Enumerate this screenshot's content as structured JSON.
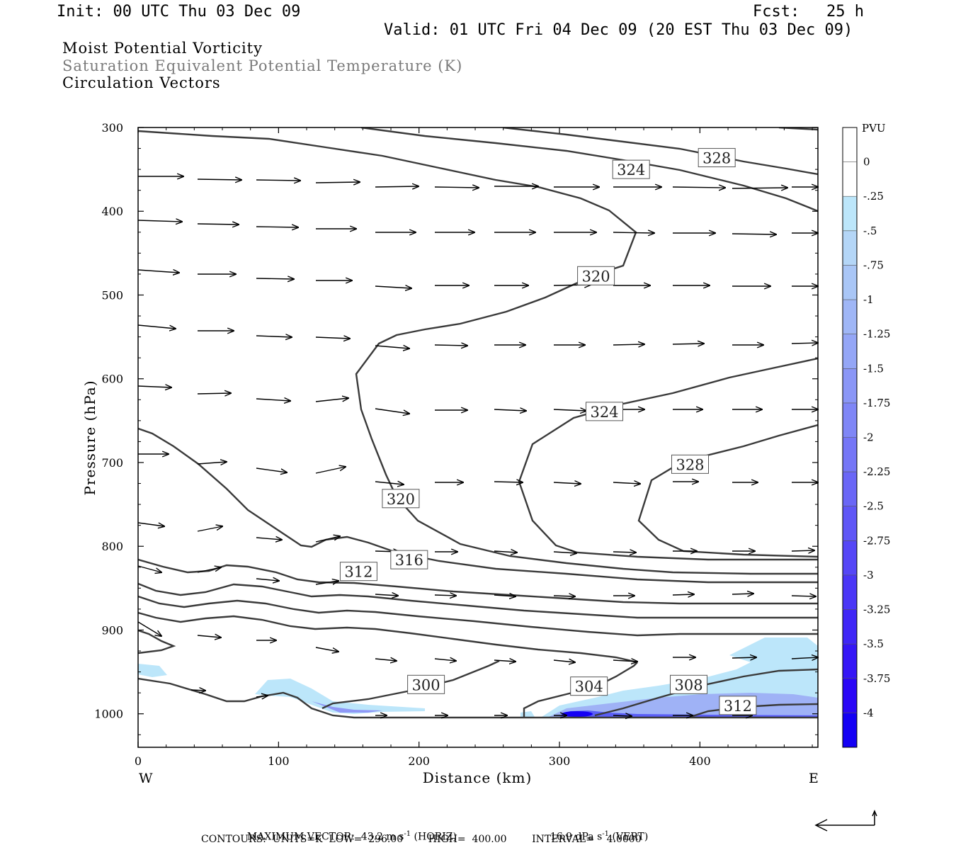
{
  "header": {
    "init": "Init: 00 UTC Thu 03 Dec 09",
    "fcst_label": "Fcst:",
    "fcst_value": "25 h",
    "valid": "Valid: 01 UTC Fri 04 Dec 09 (20 EST Thu 03 Dec 09)"
  },
  "titles": {
    "line1": "Moist Potential Vorticity",
    "line2": "Saturation Equivalent Potential Temperature (K)",
    "line3": "Circulation Vectors",
    "line2_color": "#7a7a7a"
  },
  "chart_data": {
    "type": "contour-cross-section",
    "xlabel": "Distance (km)",
    "ylabel": "Pressure (hPa)",
    "x_ticks": [
      "0",
      "100",
      "200",
      "300",
      "400"
    ],
    "x_tick_values": [
      0,
      100,
      200,
      300,
      400
    ],
    "y_ticks": [
      "300",
      "400",
      "500",
      "600",
      "700",
      "800",
      "900",
      "1000"
    ],
    "y_tick_values": [
      300,
      400,
      500,
      600,
      700,
      800,
      900,
      1000
    ],
    "xlim": [
      0,
      484
    ],
    "ylim": [
      300,
      1040
    ],
    "west_label": "W",
    "east_label": "E",
    "contour_labels": [
      {
        "text": "328",
        "x": 412,
        "p": 336
      },
      {
        "text": "324",
        "x": 351,
        "p": 350
      },
      {
        "text": "320",
        "x": 326,
        "p": 477
      },
      {
        "text": "324",
        "x": 332,
        "p": 639
      },
      {
        "text": "328",
        "x": 393,
        "p": 702
      },
      {
        "text": "320",
        "x": 187,
        "p": 743
      },
      {
        "text": "316",
        "x": 193,
        "p": 816
      },
      {
        "text": "312",
        "x": 157,
        "p": 830
      },
      {
        "text": "300",
        "x": 205,
        "p": 965
      },
      {
        "text": "304",
        "x": 321,
        "p": 967
      },
      {
        "text": "308",
        "x": 392,
        "p": 965
      },
      {
        "text": "312",
        "x": 427,
        "p": 990
      }
    ],
    "colorbar": {
      "title": "PVU",
      "labels": [
        "0",
        "-.25",
        "-.5",
        "-.75",
        "-1",
        "-1.25",
        "-1.5",
        "-1.75",
        "-2",
        "-2.25",
        "-2.5",
        "-2.75",
        "-3",
        "-3.25",
        "-3.5",
        "-3.75",
        "-4"
      ],
      "colors": [
        "#ffffff",
        "#ffffff",
        "#bce6fa",
        "#b4d6f7",
        "#a9c6f6",
        "#9fb6f6",
        "#94a6f6",
        "#8a96f6",
        "#7f86f6",
        "#7576f6",
        "#6a66f6",
        "#5f56f6",
        "#5546f6",
        "#4a36f6",
        "#3f26f6",
        "#3516f6",
        "#2a06f6",
        "#1400f4"
      ]
    }
  },
  "footer": {
    "max_vector_label": "MAXIMUM VECTOR:",
    "horiz_value": "43.2 m s",
    "horiz_exp": "-1",
    "horiz_unit": "(HORIZ)",
    "vert_value": "16.9 dPa s",
    "vert_exp": "-1",
    "vert_unit": "(VERT)",
    "contours_line": "CONTOURS:  UNITS=K  LOW=  296.00        HIGH=  400.00        INTERVAL=    4.0000"
  }
}
